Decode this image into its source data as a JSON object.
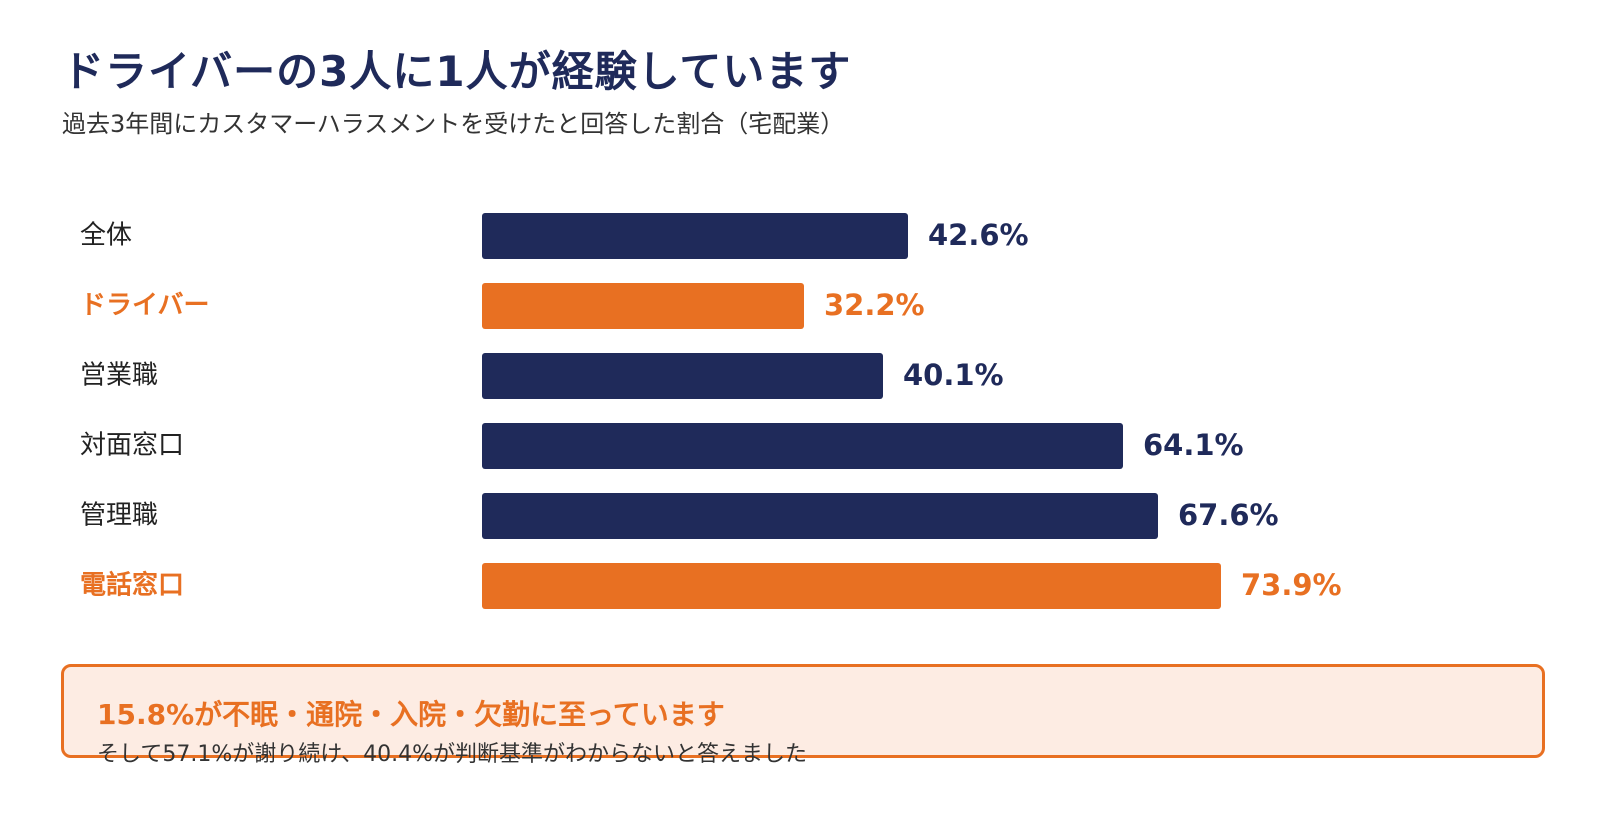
{
  "header": {
    "title": "ドライバーの3人に1人が経験しています",
    "subtitle": "過去3年間にカスタマーハラスメントを受けたと回答した割合（宅配業）"
  },
  "colors": {
    "navy": "#1f2a5a",
    "orange": "#e87022",
    "callout_bg": "#fdece3",
    "label_default": "#222222"
  },
  "chart_data": {
    "type": "bar",
    "orientation": "horizontal",
    "categories": [
      "全体",
      "ドライバー",
      "営業職",
      "対面窓口",
      "管理職",
      "電話窓口"
    ],
    "values": [
      42.6,
      32.2,
      40.1,
      64.1,
      67.6,
      73.9
    ],
    "value_labels": [
      "42.6%",
      "32.2%",
      "40.1%",
      "64.1%",
      "67.6%",
      "73.9%"
    ],
    "highlighted": [
      false,
      true,
      false,
      false,
      false,
      true
    ],
    "xlim": [
      0,
      100
    ],
    "grid": false,
    "legend": "none"
  },
  "callout": {
    "headline": "15.8%が不眠・通院・入院・欠勤に至っています",
    "body": "そして57.1%が謝り続け、40.4%が判断基準がわからないと答えました"
  }
}
